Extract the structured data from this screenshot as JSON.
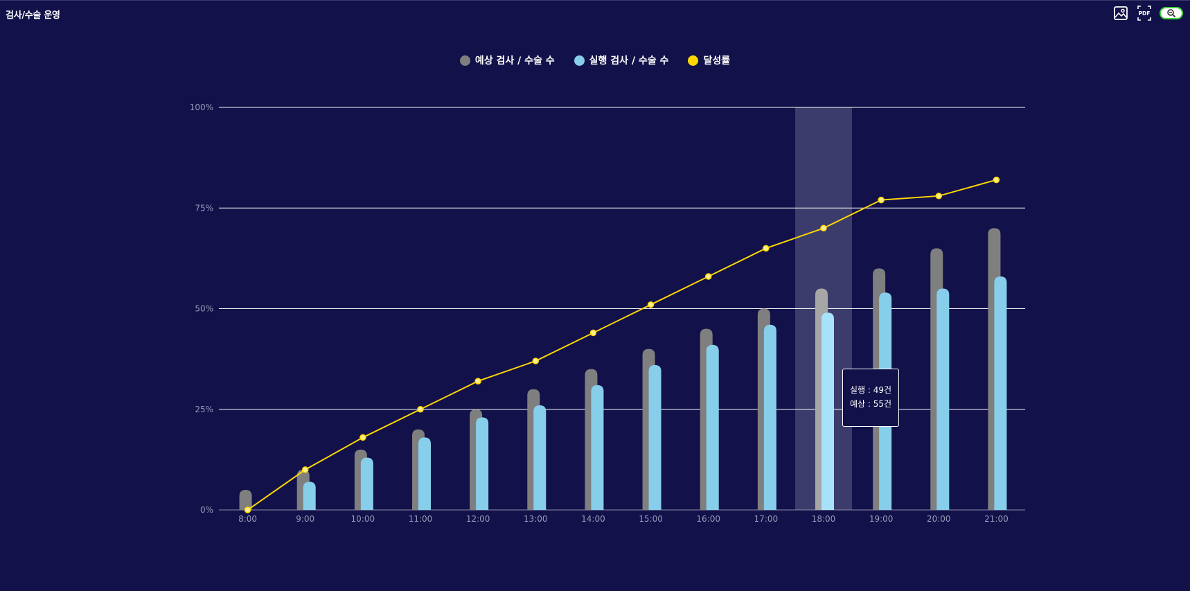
{
  "header": {
    "title": "검사/수술 운영"
  },
  "toolbar": {
    "image_icon": "image-download-icon",
    "pdf_icon": "pdf-download-icon",
    "zoom_icon": "zoom-out-icon"
  },
  "legend": {
    "items": [
      {
        "label": "예상 검사 / 수술 수",
        "color": "#7f7f7f"
      },
      {
        "label": "실행 검사 / 수술 수",
        "color": "#87ceeb"
      },
      {
        "label": "달성률",
        "color": "#ffd700"
      }
    ]
  },
  "tooltip": {
    "category": "18:00",
    "line1": "실행 : 49건",
    "line2": "예상 : 55건"
  },
  "chart_data": {
    "type": "bar",
    "categories": [
      "8:00",
      "9:00",
      "10:00",
      "11:00",
      "12:00",
      "13:00",
      "14:00",
      "15:00",
      "16:00",
      "17:00",
      "18:00",
      "19:00",
      "20:00",
      "21:00"
    ],
    "series": [
      {
        "name": "예상 검사 / 수술 수",
        "type": "bar",
        "color": "#7f7f7f",
        "values": [
          5,
          10,
          15,
          20,
          25,
          30,
          35,
          40,
          45,
          50,
          55,
          60,
          65,
          70
        ]
      },
      {
        "name": "실행 검사 / 수술 수",
        "type": "bar",
        "color": "#87ceeb",
        "values": [
          0,
          7,
          13,
          18,
          23,
          26,
          31,
          36,
          41,
          46,
          49,
          54,
          55,
          58
        ]
      },
      {
        "name": "달성률",
        "type": "line",
        "color": "#ffd700",
        "values": [
          0,
          10,
          18,
          25,
          32,
          37,
          44,
          51,
          58,
          65,
          70,
          77,
          78,
          82
        ]
      }
    ],
    "yticks": [
      "0%",
      "25%",
      "50%",
      "75%",
      "100%"
    ],
    "ylim": [
      0,
      100
    ],
    "grid": true,
    "legend_position": "top-center",
    "highlight_category": "18:00",
    "colors": {
      "background": "#12114a",
      "grid": "#ffffff",
      "axis_text": "#9a9ab8",
      "highlight": "#3c3c6c"
    }
  }
}
